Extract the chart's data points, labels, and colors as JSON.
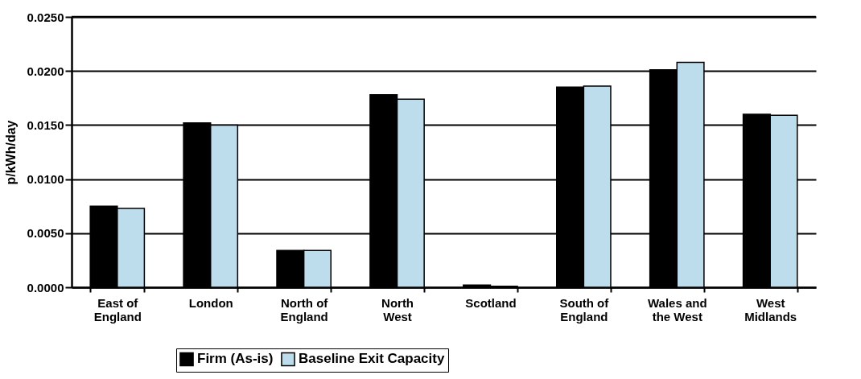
{
  "chart_data": {
    "type": "bar",
    "ylabel": "p/kWh/day",
    "categories": [
      "East of\nEngland",
      "London",
      "North of\nEngland",
      "North\nWest",
      "Scotland",
      "South of\nEngland",
      "Wales and\nthe West",
      "West\nMidlands"
    ],
    "series": [
      {
        "name": "Firm (As-is)",
        "color": "#000000",
        "values": [
          0.0075,
          0.0152,
          0.0034,
          0.0178,
          0.0002,
          0.0185,
          0.0201,
          0.016
        ]
      },
      {
        "name": "Baseline Exit Capacity",
        "color": "#bddcec",
        "values": [
          0.0073,
          0.015,
          0.0034,
          0.0174,
          0.0001,
          0.0186,
          0.0208,
          0.0159
        ]
      }
    ],
    "ylim": [
      0,
      0.025
    ],
    "yticks": [
      {
        "value": 0,
        "label": "0.0000"
      },
      {
        "value": 0.005,
        "label": "0.0050"
      },
      {
        "value": 0.01,
        "label": "0.0100"
      },
      {
        "value": 0.015,
        "label": "0.0150"
      },
      {
        "value": 0.02,
        "label": "0.0200"
      },
      {
        "value": 0.025,
        "label": "0.0250"
      }
    ],
    "grid": "y",
    "legend": "bottom"
  }
}
